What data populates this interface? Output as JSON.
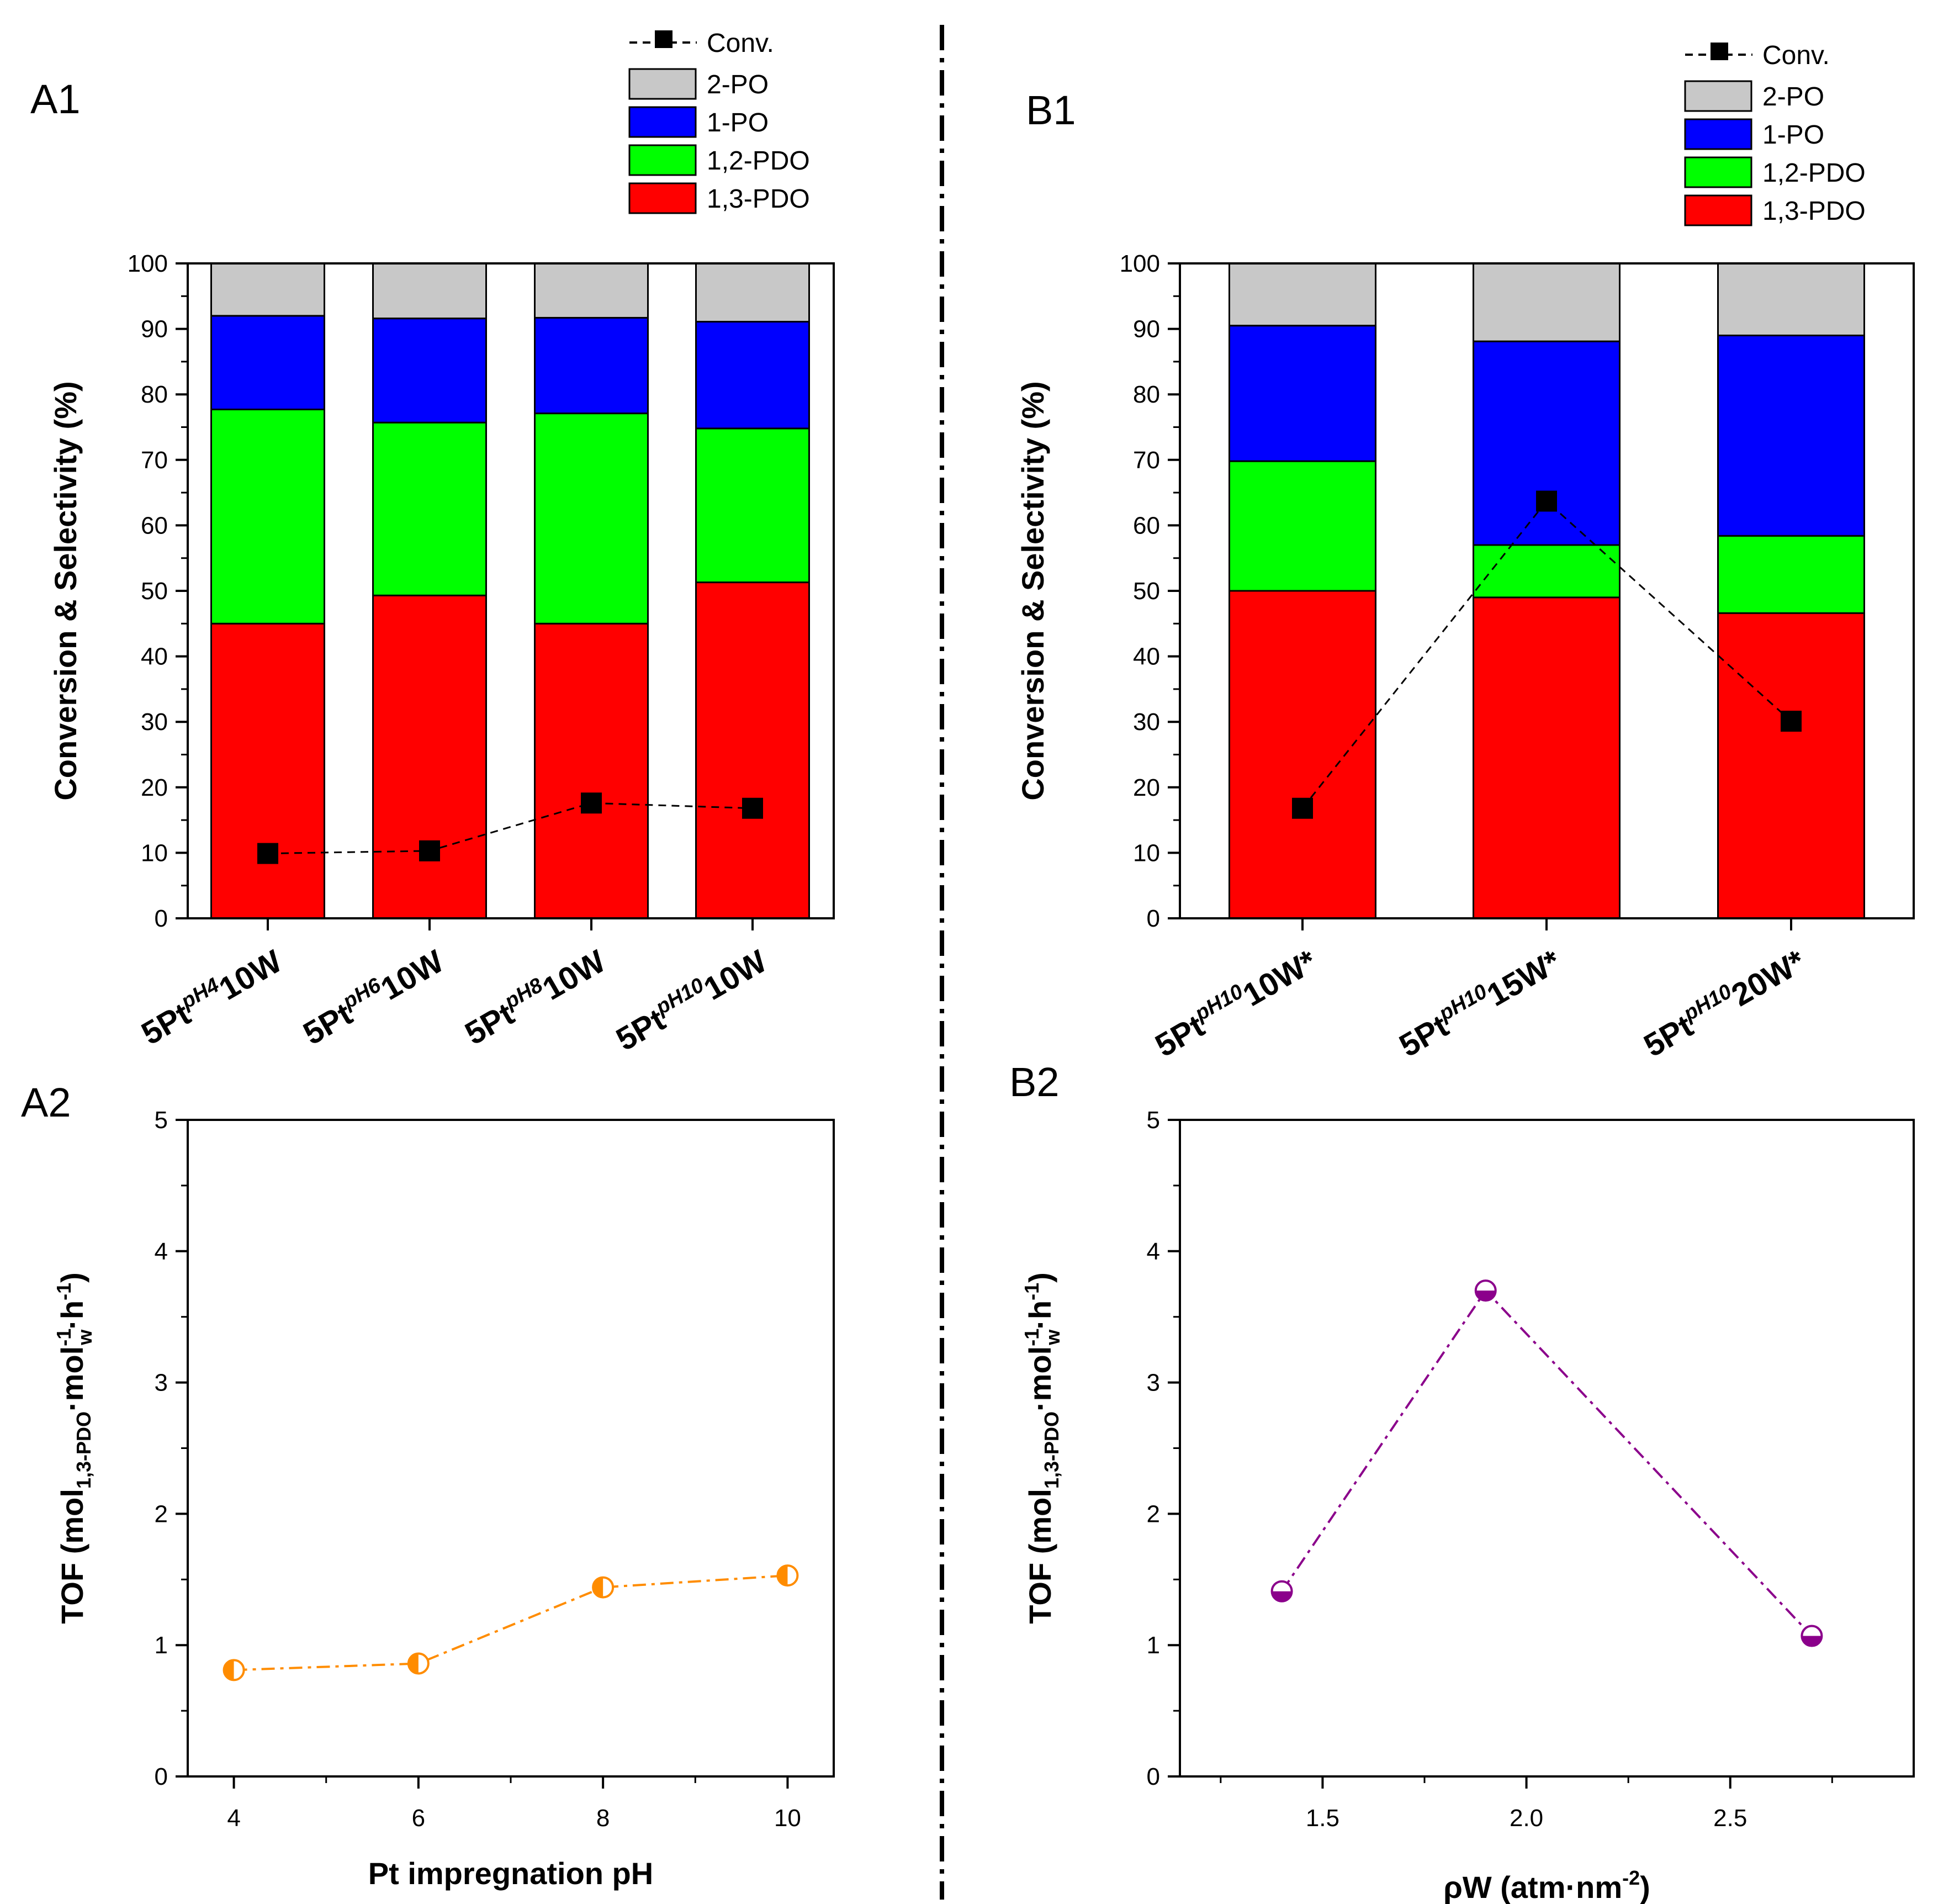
{
  "divider": {
    "style": "dash-dot",
    "color": "#000000"
  },
  "chart_data": [
    {
      "id": "A1",
      "type": "bar",
      "stacked": true,
      "panel_label": "A1",
      "ylabel": "Conversion & Selectivity (%)",
      "ylim": [
        0,
        100
      ],
      "yticks": [
        0,
        10,
        20,
        30,
        40,
        50,
        60,
        70,
        80,
        90,
        100
      ],
      "categories": [
        {
          "base": "5Pt",
          "sup": "pH4",
          "tail": "10W"
        },
        {
          "base": "5Pt",
          "sup": "pH6",
          "tail": "10W"
        },
        {
          "base": "5Pt",
          "sup": "pH8",
          "tail": "10W"
        },
        {
          "base": "5Pt",
          "sup": "pH10",
          "tail": "10W"
        }
      ],
      "series": [
        {
          "name": "1,3-PDO",
          "color": "#ff0000",
          "values": [
            45.0,
            49.3,
            45.0,
            51.3
          ]
        },
        {
          "name": "1,2-PDO",
          "color": "#00ff00",
          "values": [
            32.7,
            26.4,
            32.1,
            23.5
          ]
        },
        {
          "name": "1-PO",
          "color": "#0000ff",
          "values": [
            14.3,
            15.9,
            14.6,
            16.3
          ]
        },
        {
          "name": "2-PO",
          "color": "#c8c8c8",
          "values": [
            8.0,
            8.4,
            8.3,
            8.9
          ]
        }
      ],
      "line_series": {
        "name": "Conv.",
        "color": "#000000",
        "marker": "square",
        "values": [
          9.9,
          10.3,
          17.6,
          16.8
        ]
      },
      "legend_position": "top-right"
    },
    {
      "id": "B1",
      "type": "bar",
      "stacked": true,
      "panel_label": "B1",
      "ylabel": "Conversion & Selectivity (%)",
      "ylim": [
        0,
        100
      ],
      "yticks": [
        0,
        10,
        20,
        30,
        40,
        50,
        60,
        70,
        80,
        90,
        100
      ],
      "categories": [
        {
          "base": "5Pt",
          "sup": "pH10",
          "tail": "10W*"
        },
        {
          "base": "5Pt",
          "sup": "pH10",
          "tail": "15W*"
        },
        {
          "base": "5Pt",
          "sup": "pH10",
          "tail": "20W*"
        }
      ],
      "series": [
        {
          "name": "1,3-PDO",
          "color": "#ff0000",
          "values": [
            50.0,
            49.0,
            46.6
          ]
        },
        {
          "name": "1,2-PDO",
          "color": "#00ff00",
          "values": [
            19.8,
            8.0,
            11.8
          ]
        },
        {
          "name": "1-PO",
          "color": "#0000ff",
          "values": [
            20.7,
            31.1,
            30.6
          ]
        },
        {
          "name": "2-PO",
          "color": "#c8c8c8",
          "values": [
            9.5,
            11.9,
            11.0
          ]
        }
      ],
      "line_series": {
        "name": "Conv.",
        "color": "#000000",
        "marker": "square",
        "values": [
          16.8,
          63.7,
          30.1
        ]
      },
      "legend_position": "top-right"
    },
    {
      "id": "A2",
      "type": "line",
      "panel_label": "A2",
      "ylabel": {
        "base": "TOF (mol",
        "sub1": "1,3-PDO",
        "mid": "·mol",
        "sup1": "-1",
        "sub2": "w",
        "tail": "·h",
        "sup2": "-1",
        "close": ")"
      },
      "xlabel": "Pt impregnation pH",
      "xlim": [
        3.5,
        10.5
      ],
      "ylim": [
        0,
        5
      ],
      "xticks": [
        4,
        6,
        8,
        10
      ],
      "xticklabels": [
        "4",
        "6",
        "8",
        "10"
      ],
      "yticks": [
        0,
        1,
        2,
        3,
        4,
        5
      ],
      "x": [
        4,
        6,
        8,
        10
      ],
      "values": [
        0.81,
        0.86,
        1.44,
        1.53
      ],
      "color": "#ff8c00",
      "marker": "half-filled-circle",
      "line_style": "dash-dot"
    },
    {
      "id": "B2",
      "type": "line",
      "panel_label": "B2",
      "ylabel": {
        "base": "TOF (mol",
        "sub1": "1,3-PDO",
        "mid": "·mol",
        "sup1": "-1",
        "sub2": "w",
        "tail": "·h",
        "sup2": "-1",
        "close": ")"
      },
      "xlabel": {
        "base": "ρW (atm·nm",
        "sup": "-2",
        "close": ")"
      },
      "xlim": [
        1.15,
        2.95
      ],
      "ylim": [
        0,
        5
      ],
      "xticks": [
        1.5,
        2.0,
        2.5
      ],
      "xticklabels": [
        "1.5",
        "2.0",
        "2.5"
      ],
      "yticks": [
        0,
        1,
        2,
        3,
        4,
        5
      ],
      "x": [
        1.4,
        1.9,
        2.7
      ],
      "values": [
        1.41,
        3.7,
        1.07
      ],
      "color": "#8b008b",
      "marker": "half-filled-circle",
      "line_style": "dash-dot"
    }
  ]
}
